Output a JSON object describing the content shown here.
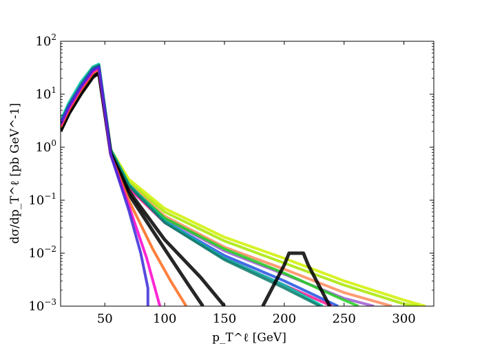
{
  "chart_data": {
    "type": "line",
    "title": "",
    "xlabel": "p_T^ℓ [GeV]",
    "ylabel": "dσ/dp_T^ℓ [pb GeV^-1]",
    "xlim": [
      13,
      325
    ],
    "ylim": [
      0.001,
      100
    ],
    "yscale": "log",
    "grid": false,
    "legend": "none",
    "x_ticks": [
      50,
      100,
      150,
      200,
      250,
      300
    ],
    "x_tick_labels": [
      "50",
      "100",
      "150",
      "200",
      "250",
      "300"
    ],
    "y_ticks": [
      0.001,
      0.01,
      0.1,
      1,
      10,
      100
    ],
    "y_tick_labels": [
      {
        "base": "10",
        "exp": "−3"
      },
      {
        "base": "10",
        "exp": "−2"
      },
      {
        "base": "10",
        "exp": "−1"
      },
      {
        "base": "10",
        "exp": "0"
      },
      {
        "base": "10",
        "exp": "1"
      },
      {
        "base": "10",
        "exp": "2"
      }
    ],
    "series": [
      {
        "color": "#d0f000",
        "x": [
          13,
          20,
          30,
          40,
          45,
          55,
          70,
          100,
          150,
          200,
          250,
          300,
          318
        ],
        "y": [
          2.2,
          5,
          12,
          26,
          35,
          0.9,
          0.25,
          0.07,
          0.02,
          0.008,
          0.003,
          0.0013,
          0.001
        ]
      },
      {
        "color": "#a8e600",
        "x": [
          13,
          20,
          30,
          40,
          45,
          55,
          70,
          100,
          150,
          200,
          250,
          300,
          312
        ],
        "y": [
          2.4,
          5.3,
          12.5,
          27,
          35,
          0.85,
          0.22,
          0.06,
          0.017,
          0.0065,
          0.0025,
          0.0011,
          0.001
        ]
      },
      {
        "color": "#ff8a5c",
        "x": [
          13,
          20,
          30,
          40,
          45,
          55,
          70,
          100,
          150,
          200,
          250,
          290
        ],
        "y": [
          2.3,
          5,
          12,
          26,
          33,
          0.8,
          0.2,
          0.05,
          0.013,
          0.005,
          0.0018,
          0.001
        ]
      },
      {
        "color": "#9b59d0",
        "x": [
          13,
          20,
          30,
          40,
          45,
          55,
          70,
          100,
          150,
          200,
          250,
          275
        ],
        "y": [
          2.5,
          5.5,
          13,
          28,
          34,
          0.8,
          0.19,
          0.045,
          0.011,
          0.004,
          0.0014,
          0.001
        ]
      },
      {
        "color": "#2050e0",
        "x": [
          13,
          20,
          30,
          40,
          45,
          55,
          70,
          100,
          150,
          200,
          245
        ],
        "y": [
          2.6,
          5.6,
          13.5,
          29,
          35,
          0.82,
          0.18,
          0.04,
          0.009,
          0.003,
          0.001
        ]
      },
      {
        "color": "#ff1493",
        "x": [
          13,
          20,
          30,
          40,
          45,
          55,
          70,
          100,
          150,
          200,
          240
        ],
        "y": [
          2.4,
          5.2,
          12.5,
          27,
          32,
          0.78,
          0.17,
          0.038,
          0.008,
          0.0025,
          0.001
        ]
      },
      {
        "color": "#22d022",
        "x": [
          13,
          20,
          30,
          40,
          45,
          55,
          70,
          100,
          150,
          200,
          250,
          262
        ],
        "y": [
          2.5,
          5.4,
          13,
          28,
          33,
          0.8,
          0.19,
          0.046,
          0.012,
          0.0042,
          0.0013,
          0.001
        ]
      },
      {
        "color": "#00c2a8",
        "x": [
          13,
          20,
          30,
          40,
          45,
          55,
          70,
          100,
          150,
          200,
          232
        ],
        "y": [
          3.2,
          7,
          17,
          33,
          37,
          0.9,
          0.2,
          0.04,
          0.008,
          0.0025,
          0.001
        ]
      },
      {
        "color": "#0a7a6a",
        "x": [
          13,
          20,
          30,
          40,
          45,
          55,
          70,
          100,
          150,
          200,
          230
        ],
        "y": [
          2.9,
          6.3,
          15,
          31,
          35,
          0.86,
          0.19,
          0.038,
          0.0075,
          0.0022,
          0.001
        ]
      },
      {
        "color": "#000000",
        "x": [
          13,
          20,
          30,
          40,
          45,
          55,
          70,
          100,
          130,
          150
        ],
        "y": [
          2.0,
          4.3,
          10,
          21,
          25,
          0.75,
          0.15,
          0.018,
          0.0035,
          0.001
        ]
      },
      {
        "color": "#000000",
        "x": [
          13,
          20,
          30,
          40,
          45,
          55,
          70,
          100,
          120,
          132
        ],
        "y": [
          2.1,
          4.5,
          10.5,
          22,
          26,
          0.75,
          0.13,
          0.012,
          0.0025,
          0.001
        ]
      },
      {
        "color": "#ff6a1a",
        "x": [
          13,
          20,
          30,
          40,
          45,
          55,
          70,
          90,
          105,
          118
        ],
        "y": [
          2.4,
          5.1,
          12,
          25,
          30,
          0.7,
          0.1,
          0.012,
          0.003,
          0.001
        ]
      },
      {
        "color": "#ff00cc",
        "x": [
          13,
          20,
          30,
          40,
          45,
          55,
          70,
          85,
          96
        ],
        "y": [
          2.6,
          5.5,
          13,
          27,
          31,
          0.7,
          0.08,
          0.008,
          0.001
        ]
      },
      {
        "color": "#3a2ad8",
        "x": [
          13,
          20,
          30,
          40,
          45,
          55,
          70,
          80,
          86,
          86
        ],
        "y": [
          2.8,
          6,
          14,
          29,
          33,
          0.72,
          0.065,
          0.01,
          0.0022,
          0.001
        ]
      },
      {
        "color": "#000000",
        "x": [
          182,
          200,
          204,
          216,
          220,
          238
        ],
        "y": [
          0.001,
          0.006,
          0.01,
          0.01,
          0.006,
          0.001
        ]
      }
    ]
  }
}
